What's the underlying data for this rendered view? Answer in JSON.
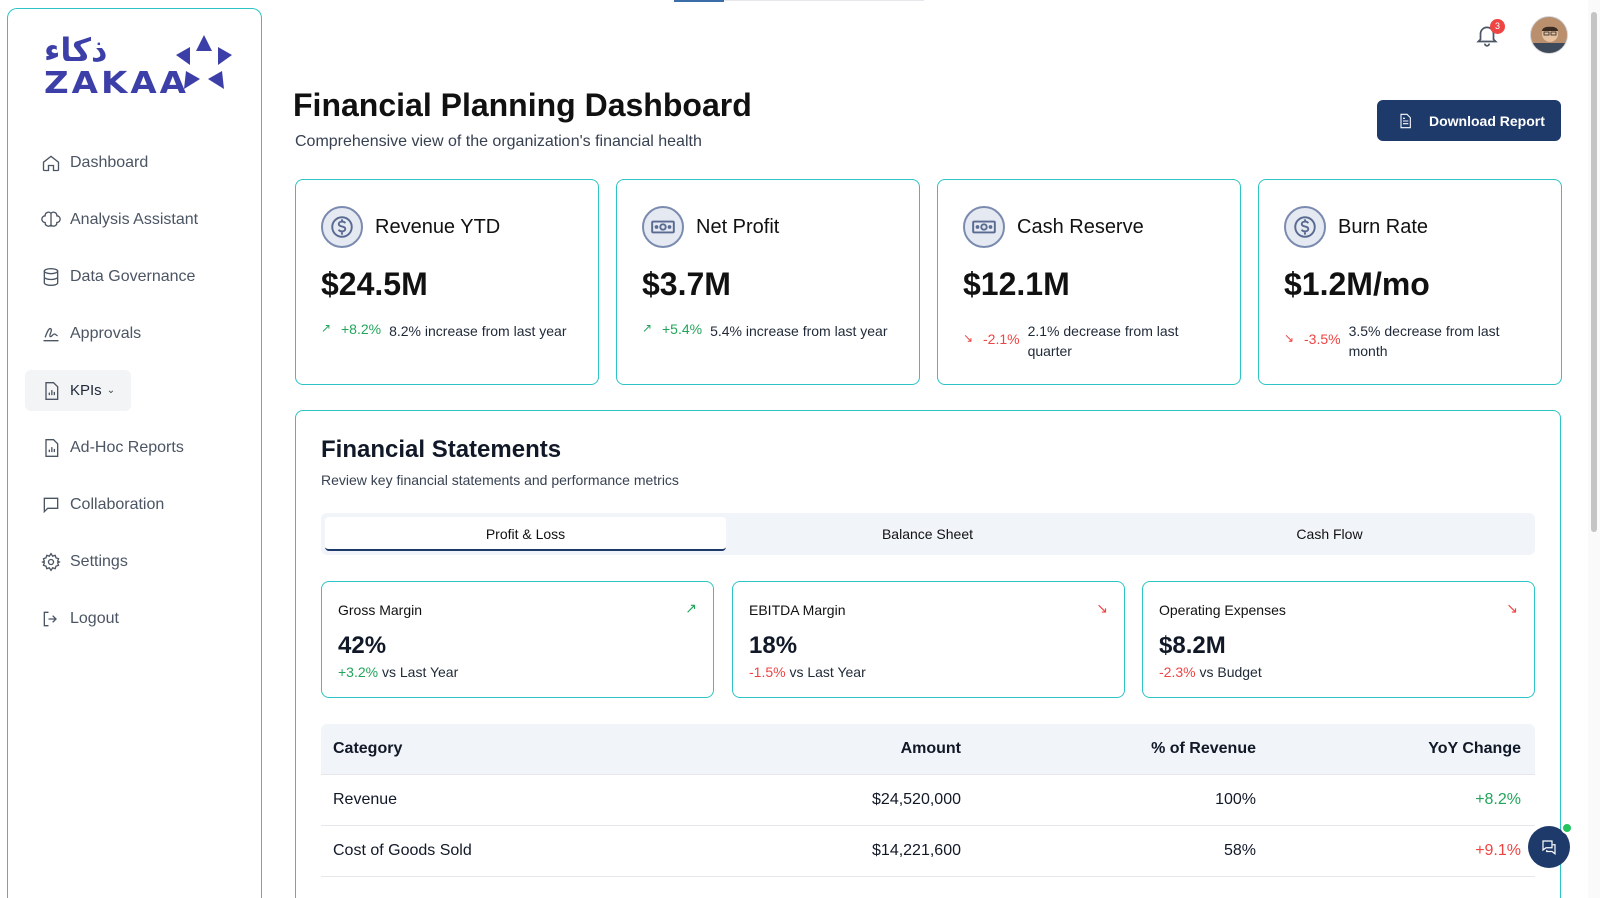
{
  "brand": {
    "logo_arabic": "ذكاء",
    "logo_latin": "ZAKAA",
    "accent": "#2cc4c4",
    "primary": "#1e3a6b",
    "logo_color": "#3d3fa8"
  },
  "sidebar": {
    "items": [
      {
        "label": "Dashboard",
        "icon": "home-icon"
      },
      {
        "label": "Analysis Assistant",
        "icon": "brain-icon"
      },
      {
        "label": "Data Governance",
        "icon": "database-icon"
      },
      {
        "label": "Approvals",
        "icon": "signature-icon"
      },
      {
        "label": "KPIs",
        "icon": "report-icon",
        "active": true,
        "has_dropdown": true
      },
      {
        "label": "Ad-Hoc Reports",
        "icon": "report-icon"
      },
      {
        "label": "Collaboration",
        "icon": "chat-icon"
      },
      {
        "label": "Settings",
        "icon": "gear-icon"
      },
      {
        "label": "Logout",
        "icon": "logout-icon"
      }
    ]
  },
  "topbar": {
    "notification_count": "3"
  },
  "header": {
    "title": "Financial Planning Dashboard",
    "subtitle": "Comprehensive view of the organization's financial health",
    "download_label": "Download Report"
  },
  "kpis": [
    {
      "title": "Revenue YTD",
      "value": "$24.5M",
      "pct": "+8.2%",
      "direction": "up",
      "text": "8.2% increase from last year",
      "icon": "dollar-circle-icon"
    },
    {
      "title": "Net Profit",
      "value": "$3.7M",
      "pct": "+5.4%",
      "direction": "up",
      "text": "5.4% increase from last year",
      "icon": "banknote-icon"
    },
    {
      "title": "Cash Reserve",
      "value": "$12.1M",
      "pct": "-2.1%",
      "direction": "down",
      "text": "2.1% decrease from last quarter",
      "icon": "banknote-icon"
    },
    {
      "title": "Burn Rate",
      "value": "$1.2M/mo",
      "pct": "-3.5%",
      "direction": "down",
      "text": "3.5% decrease from last month",
      "icon": "dollar-circle-icon"
    }
  ],
  "statements": {
    "title": "Financial Statements",
    "subtitle": "Review key financial statements and performance metrics",
    "tabs": [
      "Profit & Loss",
      "Balance Sheet",
      "Cash Flow"
    ],
    "active_tab": "Profit & Loss",
    "metrics": [
      {
        "title": "Gross Margin",
        "value": "42%",
        "change": "+3.2%",
        "direction": "up",
        "compare": "vs Last Year"
      },
      {
        "title": "EBITDA Margin",
        "value": "18%",
        "change": "-1.5%",
        "direction": "down",
        "compare": "vs Last Year"
      },
      {
        "title": "Operating Expenses",
        "value": "$8.2M",
        "change": "-2.3%",
        "direction": "down",
        "compare": "vs Budget"
      }
    ],
    "table": {
      "headers": [
        "Category",
        "Amount",
        "% of Revenue",
        "YoY Change"
      ],
      "rows": [
        {
          "category": "Revenue",
          "amount": "$24,520,000",
          "pct": "100%",
          "yoy": "+8.2%",
          "yoy_color": "#22a55b"
        },
        {
          "category": "Cost of Goods Sold",
          "amount": "$14,221,600",
          "pct": "58%",
          "yoy": "+9.1%",
          "yoy_color": "#ef4444"
        }
      ]
    }
  }
}
